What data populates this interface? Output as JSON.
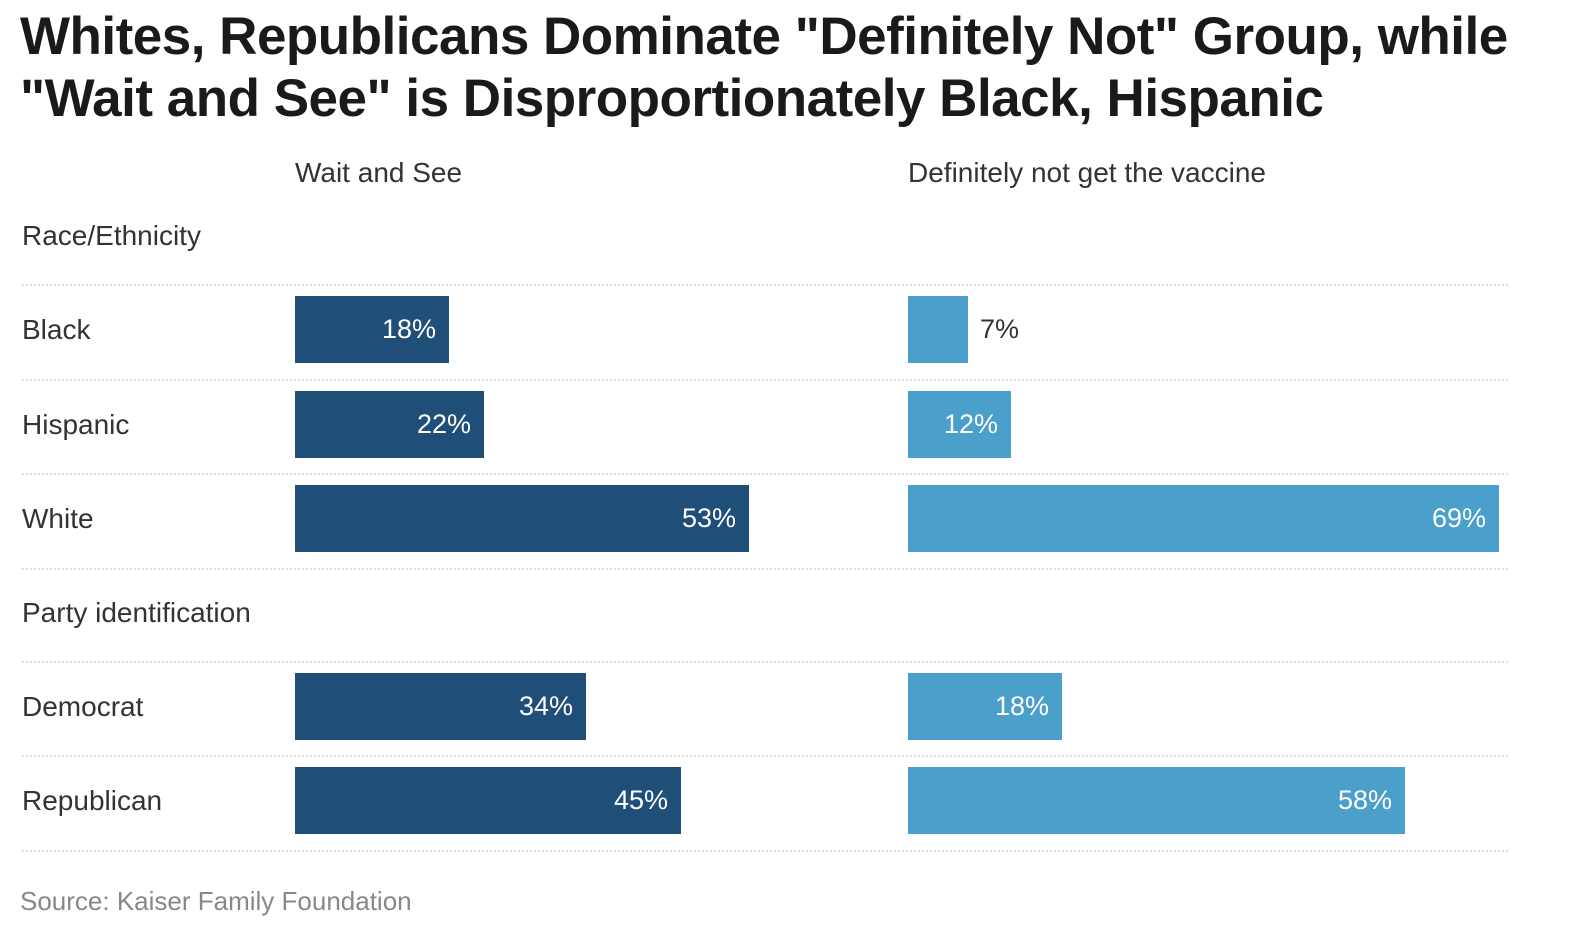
{
  "chart_data": {
    "type": "bar",
    "orientation": "horizontal",
    "title": "Whites, Republicans Dominate \"Definitely Not\" Group, while \"Wait and See\" is Disproportionately Black, Hispanic",
    "title_lines": [
      "Whites, Republicans Dominate \"Definitely Not\" Group, while",
      "\"Wait and See\" is Disproportionately Black, Hispanic"
    ],
    "groups": [
      {
        "label": "Race/Ethnicity",
        "categories": [
          "Black",
          "Hispanic",
          "White"
        ]
      },
      {
        "label": "Party identification",
        "categories": [
          "Democrat",
          "Republican"
        ]
      }
    ],
    "categories": [
      "Black",
      "Hispanic",
      "White",
      "Democrat",
      "Republican"
    ],
    "series": [
      {
        "name": "Wait and See",
        "color": "#1f4e79",
        "values": [
          18,
          22,
          53,
          34,
          45
        ],
        "labels": [
          "18%",
          "22%",
          "53%",
          "34%",
          "45%"
        ]
      },
      {
        "name": "Definitely not get the vaccine",
        "color": "#4a9fcb",
        "values": [
          7,
          12,
          69,
          18,
          58
        ],
        "labels": [
          "7%",
          "12%",
          "69%",
          "18%",
          "58%"
        ]
      }
    ],
    "value_unit": "%",
    "xlim": [
      0,
      70
    ],
    "grid": false,
    "source": "Source: Kaiser Family Foundation"
  }
}
